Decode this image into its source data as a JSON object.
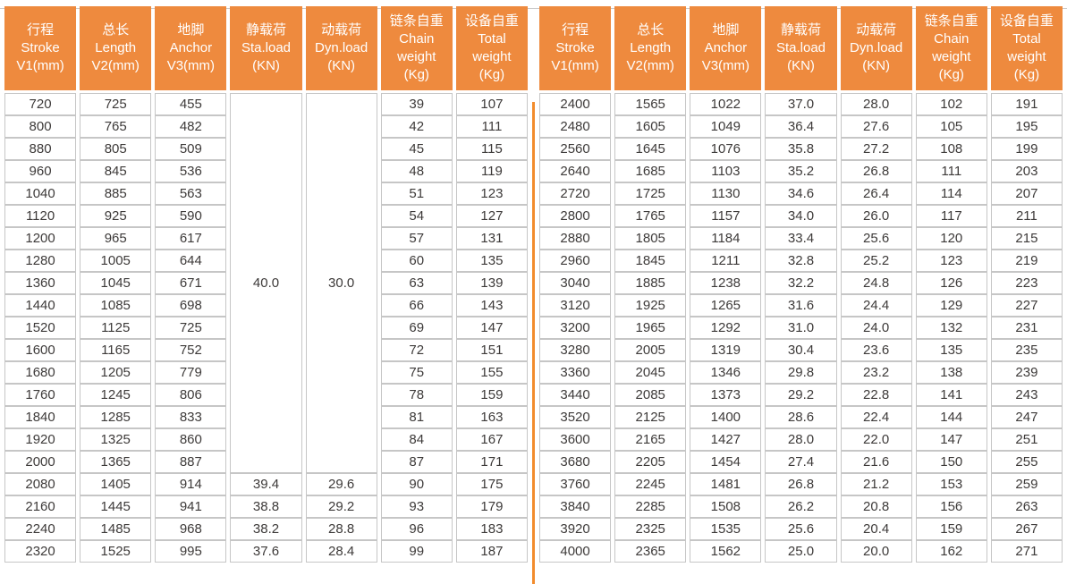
{
  "document": {
    "kind": "equipment-specification-table",
    "languages": "Chinese / English"
  },
  "colors": {
    "page_bg": "#ffffff",
    "header_bg": "#ee8a3e",
    "header_text": "#ffffff",
    "grid_line": "#c6c6c6",
    "data_text": "#3d3a39",
    "divider": "#f28c2d",
    "top_rule": "#cbcbcb"
  },
  "table": {
    "column_headers": [
      {
        "zh": "行程",
        "en_lines": [
          "Stroke",
          "V1(mm)"
        ]
      },
      {
        "zh": "总长",
        "en_lines": [
          "Length",
          "V2(mm)"
        ]
      },
      {
        "zh": "地脚",
        "en_lines": [
          "Anchor",
          "V3(mm)"
        ]
      },
      {
        "zh": "静载荷",
        "en_lines": [
          "Sta.load",
          "(KN)"
        ]
      },
      {
        "zh": "动载荷",
        "en_lines": [
          "Dyn.load",
          "(KN)"
        ]
      },
      {
        "zh": "链条自重",
        "en_lines": [
          "Chain",
          "weight",
          "(Kg)"
        ]
      },
      {
        "zh": "设备自重",
        "en_lines": [
          "Total",
          "weight",
          "(Kg)"
        ]
      }
    ],
    "halves": [
      {
        "merged_cells": {
          "sta_load": "40.0",
          "dyn_load": "30.0",
          "row_span": 17
        },
        "rows": [
          [
            "720",
            "725",
            "455",
            null,
            null,
            "39",
            "107"
          ],
          [
            "800",
            "765",
            "482",
            null,
            null,
            "42",
            "111"
          ],
          [
            "880",
            "805",
            "509",
            null,
            null,
            "45",
            "115"
          ],
          [
            "960",
            "845",
            "536",
            null,
            null,
            "48",
            "119"
          ],
          [
            "1040",
            "885",
            "563",
            null,
            null,
            "51",
            "123"
          ],
          [
            "1120",
            "925",
            "590",
            null,
            null,
            "54",
            "127"
          ],
          [
            "1200",
            "965",
            "617",
            null,
            null,
            "57",
            "131"
          ],
          [
            "1280",
            "1005",
            "644",
            null,
            null,
            "60",
            "135"
          ],
          [
            "1360",
            "1045",
            "671",
            null,
            null,
            "63",
            "139"
          ],
          [
            "1440",
            "1085",
            "698",
            null,
            null,
            "66",
            "143"
          ],
          [
            "1520",
            "1125",
            "725",
            null,
            null,
            "69",
            "147"
          ],
          [
            "1600",
            "1165",
            "752",
            null,
            null,
            "72",
            "151"
          ],
          [
            "1680",
            "1205",
            "779",
            null,
            null,
            "75",
            "155"
          ],
          [
            "1760",
            "1245",
            "806",
            null,
            null,
            "78",
            "159"
          ],
          [
            "1840",
            "1285",
            "833",
            null,
            null,
            "81",
            "163"
          ],
          [
            "1920",
            "1325",
            "860",
            null,
            null,
            "84",
            "167"
          ],
          [
            "2000",
            "1365",
            "887",
            null,
            null,
            "87",
            "171"
          ],
          [
            "2080",
            "1405",
            "914",
            "39.4",
            "29.6",
            "90",
            "175"
          ],
          [
            "2160",
            "1445",
            "941",
            "38.8",
            "29.2",
            "93",
            "179"
          ],
          [
            "2240",
            "1485",
            "968",
            "38.2",
            "28.8",
            "96",
            "183"
          ],
          [
            "2320",
            "1525",
            "995",
            "37.6",
            "28.4",
            "99",
            "187"
          ]
        ]
      },
      {
        "merged_cells": null,
        "rows": [
          [
            "2400",
            "1565",
            "1022",
            "37.0",
            "28.0",
            "102",
            "191"
          ],
          [
            "2480",
            "1605",
            "1049",
            "36.4",
            "27.6",
            "105",
            "195"
          ],
          [
            "2560",
            "1645",
            "1076",
            "35.8",
            "27.2",
            "108",
            "199"
          ],
          [
            "2640",
            "1685",
            "1103",
            "35.2",
            "26.8",
            "111",
            "203"
          ],
          [
            "2720",
            "1725",
            "1130",
            "34.6",
            "26.4",
            "114",
            "207"
          ],
          [
            "2800",
            "1765",
            "1157",
            "34.0",
            "26.0",
            "117",
            "211"
          ],
          [
            "2880",
            "1805",
            "1184",
            "33.4",
            "25.6",
            "120",
            "215"
          ],
          [
            "2960",
            "1845",
            "1211",
            "32.8",
            "25.2",
            "123",
            "219"
          ],
          [
            "3040",
            "1885",
            "1238",
            "32.2",
            "24.8",
            "126",
            "223"
          ],
          [
            "3120",
            "1925",
            "1265",
            "31.6",
            "24.4",
            "129",
            "227"
          ],
          [
            "3200",
            "1965",
            "1292",
            "31.0",
            "24.0",
            "132",
            "231"
          ],
          [
            "3280",
            "2005",
            "1319",
            "30.4",
            "23.6",
            "135",
            "235"
          ],
          [
            "3360",
            "2045",
            "1346",
            "29.8",
            "23.2",
            "138",
            "239"
          ],
          [
            "3440",
            "2085",
            "1373",
            "29.2",
            "22.8",
            "141",
            "243"
          ],
          [
            "3520",
            "2125",
            "1400",
            "28.6",
            "22.4",
            "144",
            "247"
          ],
          [
            "3600",
            "2165",
            "1427",
            "28.0",
            "22.0",
            "147",
            "251"
          ],
          [
            "3680",
            "2205",
            "1454",
            "27.4",
            "21.6",
            "150",
            "255"
          ],
          [
            "3760",
            "2245",
            "1481",
            "26.8",
            "21.2",
            "153",
            "259"
          ],
          [
            "3840",
            "2285",
            "1508",
            "26.2",
            "20.8",
            "156",
            "263"
          ],
          [
            "3920",
            "2325",
            "1535",
            "25.6",
            "20.4",
            "159",
            "267"
          ],
          [
            "4000",
            "2365",
            "1562",
            "25.0",
            "20.0",
            "162",
            "271"
          ]
        ]
      }
    ]
  }
}
